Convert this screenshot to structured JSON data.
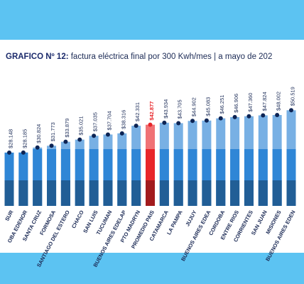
{
  "chart_data": {
    "type": "bar",
    "title_lead": "GRAFICO Nº 12:",
    "title": " factura eléctrica final por 300 Kwh/mes | a mayo de 202",
    "categories": [
      "SUR",
      "OBA EDENOR",
      "SANTA CRUZ",
      "FORMOSA",
      "SANTIAGO DEL ESTERO",
      "CHACO",
      "SAN LUIS",
      "TUCUMAN",
      "BUENOS AIRES EDELAP",
      "PTO MADRYN",
      "PROMEDIO PAIS",
      "CATAMARCA",
      "LA PAMPA",
      "JUJUY",
      "BUENOS AIRES EDEA",
      "CORDOBA",
      "ENTRE RIOS",
      "CORRIENTES",
      "SAN JUAN",
      "MISIONES",
      "BUENOS AIRES EDEN"
    ],
    "values": [
      28148,
      28185,
      30824,
      31773,
      33879,
      35021,
      37035,
      37704,
      38316,
      42331,
      42877,
      43934,
      43705,
      44902,
      45083,
      46251,
      46906,
      47360,
      47824,
      48002,
      50519
    ],
    "value_labels": [
      "$28.148",
      "$28.185",
      "$30.824",
      "$31.773",
      "$33.879",
      "$35.021",
      "$37.035",
      "$37.704",
      "$38.316",
      "$42.331",
      "$42.877",
      "$43.934",
      "$43.705",
      "$44.902",
      "$45.083",
      "$46.251",
      "$46.906",
      "$47.360",
      "$47.824",
      "$48.002",
      "$50.519"
    ],
    "colors": [
      "#2f86d6",
      "#2f86d6",
      "#2f86d6",
      "#2f86d6",
      "#2f86d6",
      "#2f86d6",
      "#2f86d6",
      "#2f86d6",
      "#2f86d6",
      "#2f86d6",
      "#e8262a",
      "#2f86d6",
      "#2f86d6",
      "#2f86d6",
      "#2f86d6",
      "#2f86d6",
      "#2f86d6",
      "#2f86d6",
      "#2f86d6",
      "#2f86d6",
      "#2f86d6"
    ],
    "ylim": [
      0,
      60000
    ]
  }
}
